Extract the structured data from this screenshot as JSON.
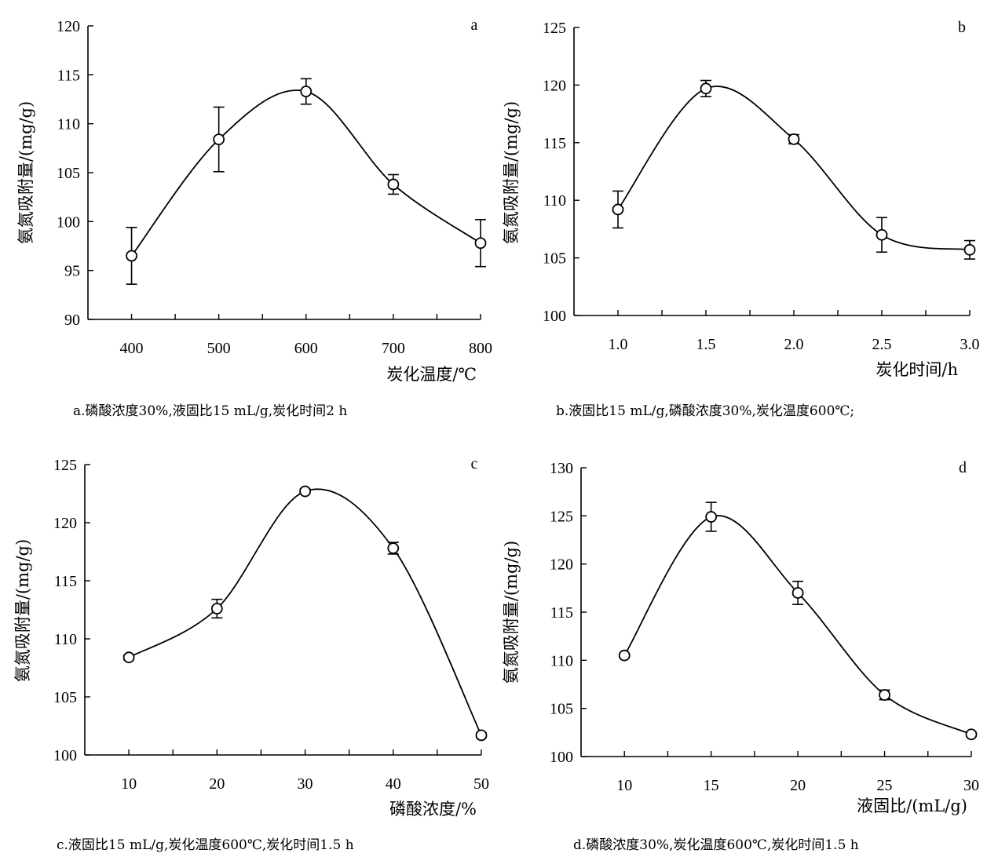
{
  "chart_data": [
    {
      "type": "line",
      "panel": "a",
      "ylabel": "氨氮吸附量/(mg/g)",
      "xlabel": "炭化温度/℃",
      "caption": "a.磷酸浓度30%,液固比15 mL/g,炭化时间2 h",
      "xlim": [
        350,
        800
      ],
      "ylim": [
        90,
        120
      ],
      "xticks": [
        400,
        500,
        600,
        700,
        800
      ],
      "xtick_labels": [
        "400",
        "500",
        "600",
        "700",
        "800"
      ],
      "yticks": [
        90,
        95,
        100,
        105,
        110,
        115,
        120
      ],
      "ytick_labels": [
        "90",
        "95",
        "100",
        "105",
        "110",
        "115",
        "120"
      ],
      "x": [
        400,
        500,
        600,
        700,
        800
      ],
      "y": [
        96.5,
        108.4,
        113.3,
        103.8,
        97.8
      ],
      "err": [
        2.9,
        3.3,
        1.3,
        1.0,
        2.4
      ],
      "grid": false
    },
    {
      "type": "line",
      "panel": "b",
      "ylabel": "氨氮吸附量/(mg/g)",
      "xlabel": "炭化时间/h",
      "caption": "b.液固比15 mL/g,磷酸浓度30%,炭化温度600℃;",
      "xlim": [
        0.75,
        3.0
      ],
      "ylim": [
        100,
        125
      ],
      "xticks": [
        1.0,
        1.5,
        2.0,
        2.5,
        3.0
      ],
      "xtick_labels": [
        "1.0",
        "1.5",
        "2.0",
        "2.5",
        "3.0"
      ],
      "yticks": [
        100,
        105,
        110,
        115,
        120,
        125
      ],
      "ytick_labels": [
        "100",
        "105",
        "110",
        "115",
        "120",
        "125"
      ],
      "x": [
        1.0,
        1.5,
        2.0,
        2.5,
        3.0
      ],
      "y": [
        109.2,
        119.7,
        115.3,
        107.0,
        105.7
      ],
      "err": [
        1.6,
        0.7,
        0.4,
        1.5,
        0.8
      ],
      "grid": false
    },
    {
      "type": "line",
      "panel": "c",
      "ylabel": "氨氮吸附量/(mg/g)",
      "xlabel": "磷酸浓度/%",
      "caption": "c.液固比15 mL/g,炭化温度600℃,炭化时间1.5 h",
      "xlim": [
        5,
        50
      ],
      "ylim": [
        100,
        125
      ],
      "xticks": [
        10,
        20,
        30,
        40,
        50
      ],
      "xtick_labels": [
        "10",
        "20",
        "30",
        "40",
        "50"
      ],
      "yticks": [
        100,
        105,
        110,
        115,
        120,
        125
      ],
      "ytick_labels": [
        "100",
        "105",
        "110",
        "115",
        "120",
        "125"
      ],
      "x": [
        10,
        20,
        30,
        40,
        50
      ],
      "y": [
        108.4,
        112.6,
        122.7,
        117.8,
        101.7
      ],
      "err": [
        0.2,
        0.8,
        0.2,
        0.5,
        0.2
      ],
      "grid": false
    },
    {
      "type": "line",
      "panel": "d",
      "ylabel": "氨氮吸附量/(mg/g)",
      "xlabel": "液固比/(mL/g)",
      "caption": "d.磷酸浓度30%,炭化温度600℃,炭化时间1.5 h",
      "xlim": [
        7.5,
        30
      ],
      "ylim": [
        100,
        130
      ],
      "xticks": [
        10,
        15,
        20,
        25,
        30
      ],
      "xtick_labels": [
        "10",
        "15",
        "20",
        "25",
        "30"
      ],
      "yticks": [
        100,
        105,
        110,
        115,
        120,
        125,
        130
      ],
      "ytick_labels": [
        "100",
        "105",
        "110",
        "115",
        "120",
        "125",
        "130"
      ],
      "x": [
        10,
        15,
        20,
        25,
        30
      ],
      "y": [
        110.5,
        124.9,
        117.0,
        106.4,
        102.3
      ],
      "err": [
        0.2,
        1.5,
        1.2,
        0.5,
        0.2
      ],
      "grid": false
    }
  ]
}
